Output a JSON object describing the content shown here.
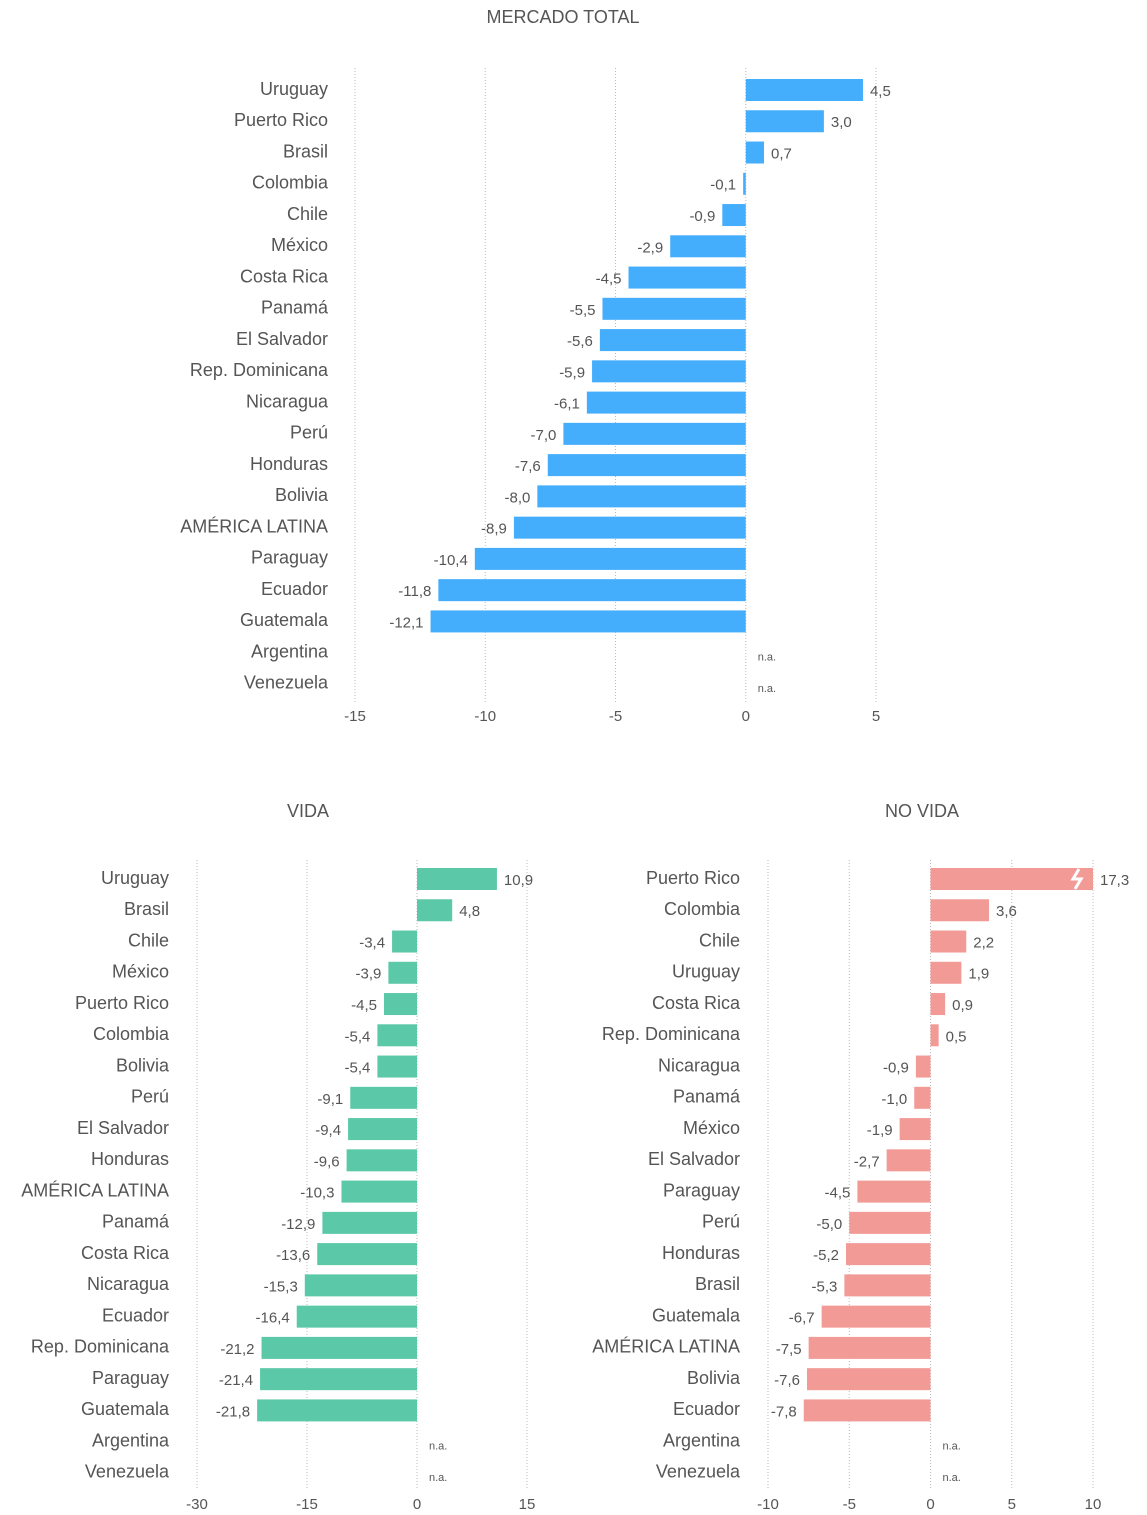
{
  "chart_data": [
    {
      "type": "bar",
      "orientation": "horizontal",
      "title": "MERCADO TOTAL",
      "color": "#45aefc",
      "grid": true,
      "categories": [
        "Uruguay",
        "Puerto Rico",
        "Brasil",
        "Colombia",
        "Chile",
        "México",
        "Costa Rica",
        "Panamá",
        "El Salvador",
        "Rep. Dominicana",
        "Nicaragua",
        "Perú",
        "Honduras",
        "Bolivia",
        "AMÉRICA LATINA",
        "Paraguay",
        "Ecuador",
        "Guatemala",
        "Argentina",
        "Venezuela"
      ],
      "values": [
        4.5,
        3.0,
        0.7,
        -0.1,
        -0.9,
        -2.9,
        -4.5,
        -5.5,
        -5.6,
        -5.9,
        -6.1,
        -7.0,
        -7.6,
        -8.0,
        -8.9,
        -10.4,
        -11.8,
        -12.1,
        null,
        null
      ],
      "value_labels": [
        "4,5",
        "3,0",
        "0,7",
        "-0,1",
        "-0,9",
        "-2,9",
        "-4,5",
        "-5,5",
        "-5,6",
        "-5,9",
        "-6,1",
        "-7,0",
        "-7,6",
        "-8,0",
        "-8,9",
        "-10,4",
        "-11,8",
        "-12,1",
        "n.a.",
        "n.a."
      ],
      "xlim": [
        -15,
        5
      ],
      "xticks": [
        -15,
        -10,
        -5,
        0,
        5
      ]
    },
    {
      "type": "bar",
      "orientation": "horizontal",
      "title": "VIDA",
      "color": "#5bc8a8",
      "grid": true,
      "categories": [
        "Uruguay",
        "Brasil",
        "Chile",
        "México",
        "Puerto Rico",
        "Colombia",
        "Bolivia",
        "Perú",
        "El Salvador",
        "Honduras",
        "AMÉRICA LATINA",
        "Panamá",
        "Costa Rica",
        "Nicaragua",
        "Ecuador",
        "Rep. Dominicana",
        "Paraguay",
        "Guatemala",
        "Argentina",
        "Venezuela"
      ],
      "values": [
        10.9,
        4.8,
        -3.4,
        -3.9,
        -4.5,
        -5.4,
        -5.4,
        -9.1,
        -9.4,
        -9.6,
        -10.3,
        -12.9,
        -13.6,
        -15.3,
        -16.4,
        -21.2,
        -21.4,
        -21.8,
        null,
        null
      ],
      "value_labels": [
        "10,9",
        "4,8",
        "-3,4",
        "-3,9",
        "-4,5",
        "-5,4",
        "-5,4",
        "-9,1",
        "-9,4",
        "-9,6",
        "-10,3",
        "-12,9",
        "-13,6",
        "-15,3",
        "-16,4",
        "-21,2",
        "-21,4",
        "-21,8",
        "n.a.",
        "n.a."
      ],
      "xlim": [
        -30,
        15
      ],
      "xticks": [
        -30,
        -15,
        0,
        15
      ]
    },
    {
      "type": "bar",
      "orientation": "horizontal",
      "title": "NO VIDA",
      "color": "#f29a96",
      "grid": true,
      "categories": [
        "Puerto Rico",
        "Colombia",
        "Chile",
        "Uruguay",
        "Costa Rica",
        "Rep. Dominicana",
        "Nicaragua",
        "Panamá",
        "México",
        "El Salvador",
        "Paraguay",
        "Perú",
        "Honduras",
        "Brasil",
        "Guatemala",
        "AMÉRICA LATINA",
        "Bolivia",
        "Ecuador",
        "Argentina",
        "Venezuela"
      ],
      "values": [
        17.3,
        3.6,
        2.2,
        1.9,
        0.9,
        0.5,
        -0.9,
        -1.0,
        -1.9,
        -2.7,
        -4.5,
        -5.0,
        -5.2,
        -5.3,
        -6.7,
        -7.5,
        -7.6,
        -7.8,
        null,
        null
      ],
      "value_labels": [
        "17,3",
        "3,6",
        "2,2",
        "1,9",
        "0,9",
        "0,5",
        "-0,9",
        "-1,0",
        "-1,9",
        "-2,7",
        "-4,5",
        "-5,0",
        "-5,2",
        "-5,3",
        "-6,7",
        "-7,5",
        "-7,6",
        "-7,8",
        "n.a.",
        "n.a."
      ],
      "xlim": [
        -10,
        10
      ],
      "xticks": [
        -10,
        -5,
        0,
        5,
        10
      ]
    }
  ]
}
